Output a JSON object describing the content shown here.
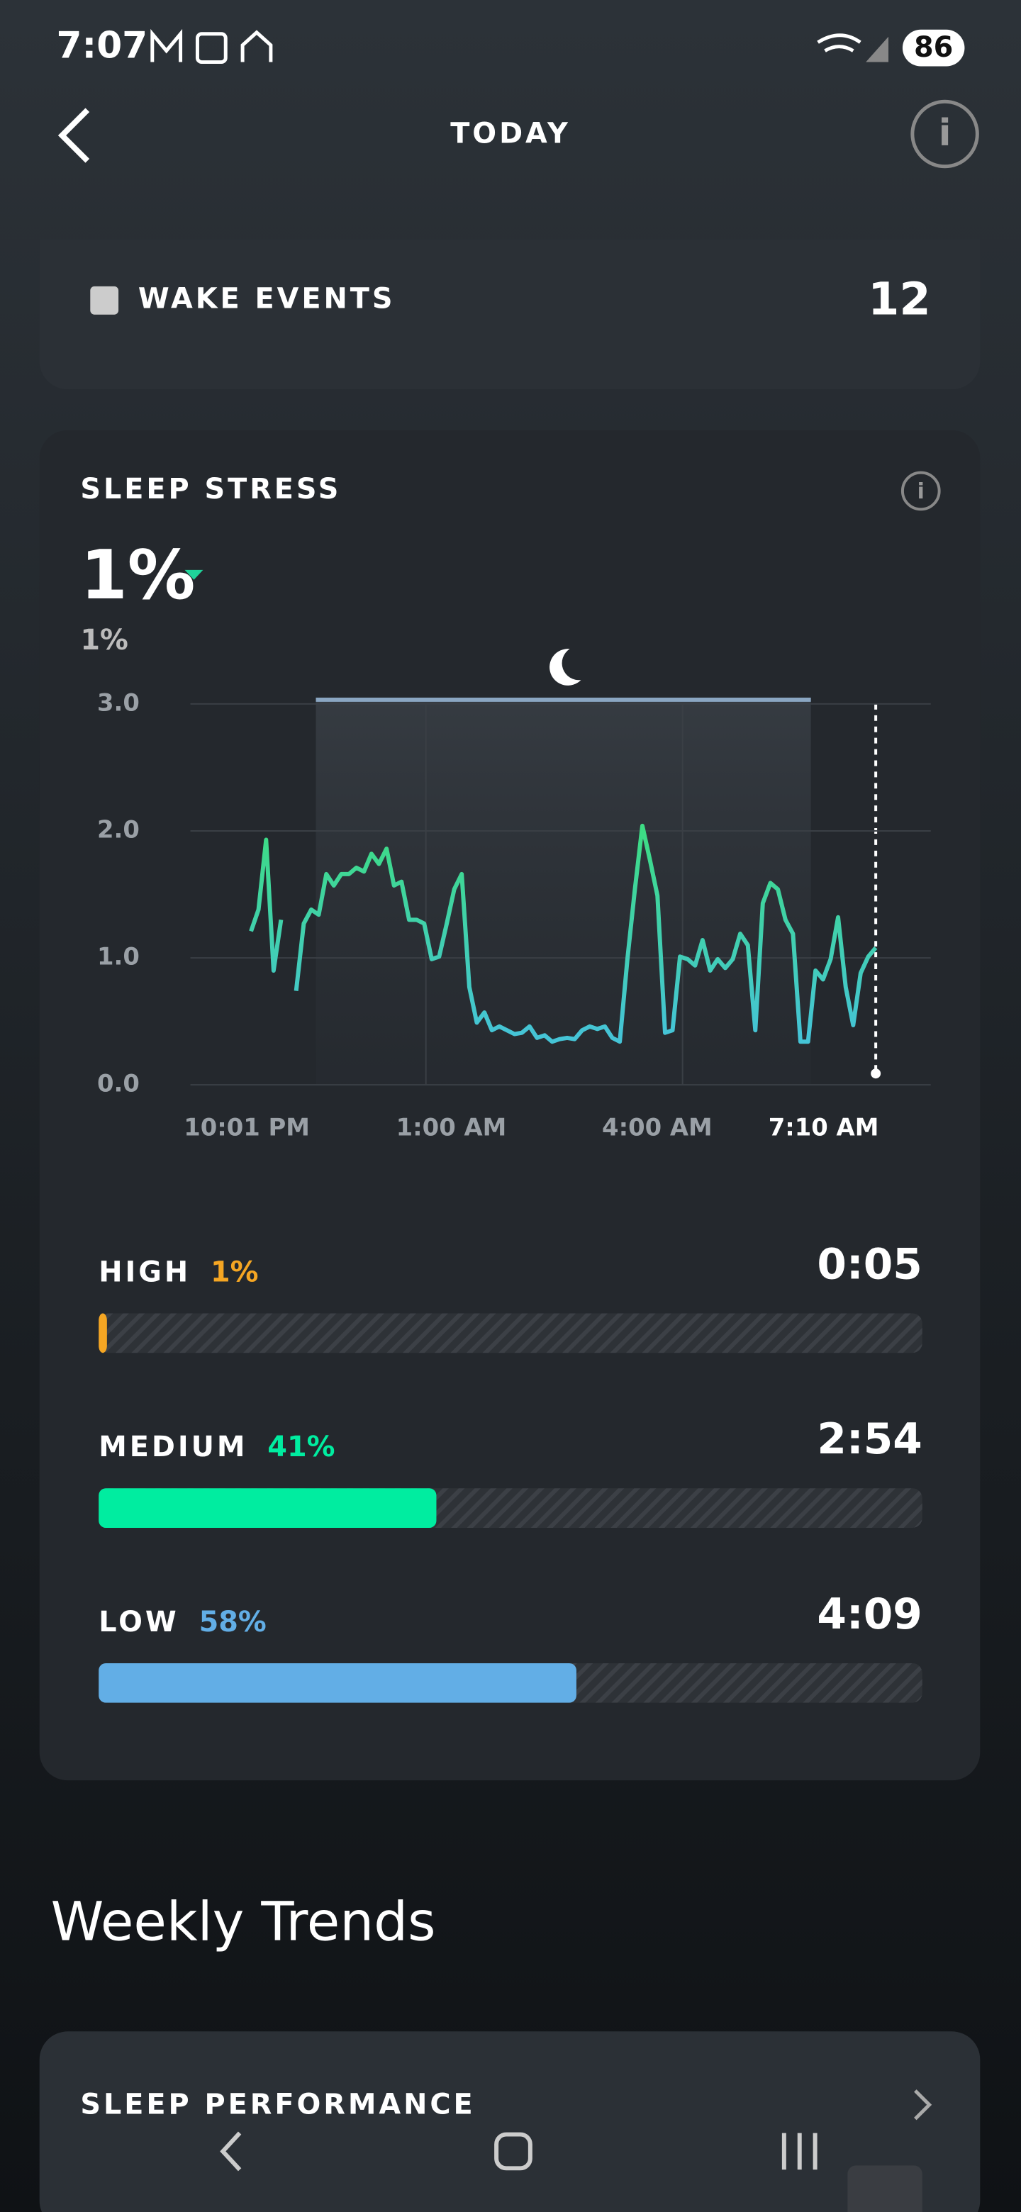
{
  "status_bar": {
    "time": "7:07",
    "battery": "86"
  },
  "header": {
    "title": "TODAY"
  },
  "wake_events": {
    "label": "WAKE EVENTS",
    "value": "12"
  },
  "sleep_stress": {
    "title": "SLEEP STRESS",
    "value": "1%",
    "sub_value": "1%",
    "chart": {
      "type": "line",
      "ylim": [
        0,
        3
      ],
      "yticks": [
        {
          "value": 0,
          "label": "0.0"
        },
        {
          "value": 1,
          "label": "1.0"
        },
        {
          "value": 2,
          "label": "2.0"
        },
        {
          "value": 3,
          "label": "3.0"
        }
      ],
      "xtick_labels": [
        "10:01 PM",
        "1:00 AM",
        "4:00 AM",
        "7:10 AM"
      ],
      "grid": true,
      "color_high": "#3ddc84",
      "color_low": "#45c4d6",
      "values": [
        1.21,
        1.38,
        1.93,
        0.9,
        1.3,
        null,
        0.74,
        1.27,
        1.38,
        1.34,
        1.66,
        1.57,
        1.66,
        1.66,
        1.71,
        1.68,
        1.82,
        1.74,
        1.86,
        1.57,
        1.6,
        1.3,
        1.3,
        1.27,
        0.99,
        1.01,
        1.27,
        1.54,
        1.66,
        0.77,
        0.49,
        0.57,
        0.43,
        0.46,
        0.43,
        0.4,
        0.41,
        0.46,
        0.37,
        0.39,
        0.34,
        0.36,
        0.37,
        0.36,
        0.43,
        0.46,
        0.44,
        0.46,
        0.37,
        0.34,
        0.99,
        1.54,
        2.04,
        1.77,
        1.49,
        0.41,
        0.43,
        1.01,
        0.99,
        0.94,
        1.14,
        0.9,
        0.99,
        0.92,
        0.99,
        1.19,
        1.1,
        0.43,
        1.43,
        1.59,
        1.54,
        1.3,
        1.19,
        0.34,
        0.34,
        0.9,
        0.83,
        0.99,
        1.32,
        0.77,
        0.47,
        0.88,
        1.01,
        1.08
      ]
    },
    "levels": [
      {
        "label": "HIGH",
        "percent_label": "1%",
        "percent": 1,
        "duration": "0:05",
        "color": "#f5a623"
      },
      {
        "label": "MEDIUM",
        "percent_label": "41%",
        "percent": 41,
        "duration": "2:54",
        "color": "#00eda0"
      },
      {
        "label": "LOW",
        "percent_label": "58%",
        "percent": 58,
        "duration": "4:09",
        "color": "#62aee6"
      }
    ]
  },
  "weekly_trends": {
    "title": "Weekly Trends",
    "card_title": "SLEEP PERFORMANCE"
  }
}
